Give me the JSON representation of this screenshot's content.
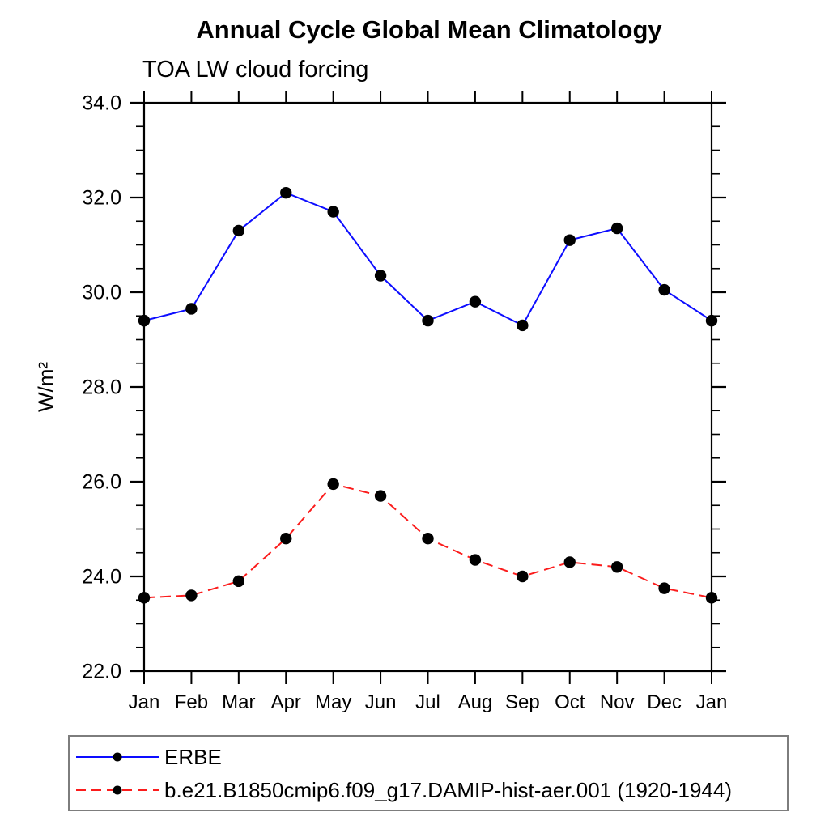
{
  "chart": {
    "title": "Annual Cycle Global Mean Climatology",
    "subtitle": "TOA LW cloud forcing",
    "ylabel": "W/m²"
  },
  "chart_data": {
    "type": "line",
    "title": "Annual Cycle Global Mean Climatology",
    "subtitle": "TOA LW cloud forcing",
    "ylabel": "W/m²",
    "categories": [
      "Jan",
      "Feb",
      "Mar",
      "Apr",
      "May",
      "Jun",
      "Jul",
      "Aug",
      "Sep",
      "Oct",
      "Nov",
      "Dec",
      "Jan"
    ],
    "ylim": [
      22.0,
      34.0
    ],
    "ytick_major_step": 2.0,
    "ytick_minor_step": 0.5,
    "ytick_labels": [
      "22.0",
      "24.0",
      "26.0",
      "28.0",
      "30.0",
      "32.0",
      "34.0"
    ],
    "grid": false,
    "legend_position": "bottom-left",
    "axis_color": "#000000",
    "marker_color": "#000000",
    "series": [
      {
        "name": "ERBE",
        "color": "#0d0dff",
        "line_style": "solid",
        "marker": "filled-circle",
        "values": [
          29.4,
          29.65,
          31.3,
          32.1,
          31.7,
          30.35,
          29.4,
          29.8,
          29.3,
          31.1,
          31.35,
          30.05,
          29.4
        ]
      },
      {
        "name": "b.e21.B1850cmip6.f09_g17.DAMIP-hist-aer.001 (1920-1944)",
        "color": "#fb1c1c",
        "line_style": "dashed",
        "marker": "filled-circle",
        "values": [
          23.55,
          23.6,
          23.9,
          24.8,
          25.95,
          25.7,
          24.8,
          24.35,
          24.0,
          24.3,
          24.2,
          23.75,
          23.55
        ]
      }
    ]
  }
}
